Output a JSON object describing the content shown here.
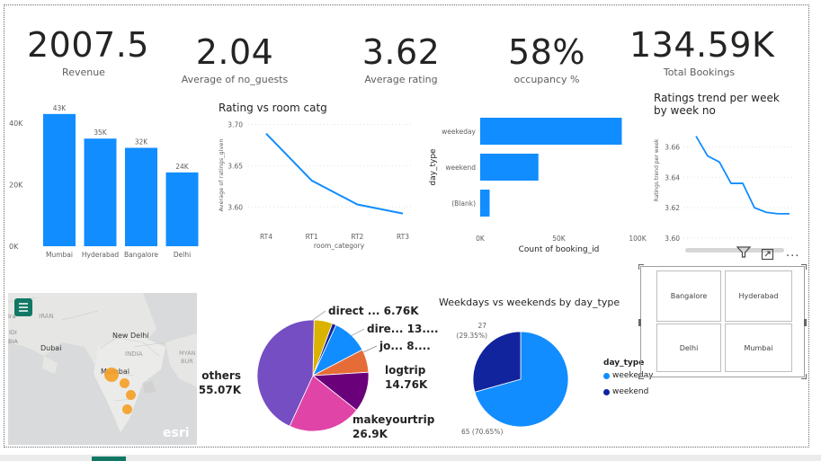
{
  "kpis": {
    "revenue": {
      "value": "2007.5M",
      "label": "Revenue"
    },
    "guests": {
      "value": "2.04",
      "label": "Average of no_guests"
    },
    "rating": {
      "value": "3.62",
      "label": "Average rating"
    },
    "occupancy": {
      "value": "58%",
      "label": "occupancy %"
    },
    "bookings": {
      "value": "134.59K",
      "label": "Total Bookings"
    }
  },
  "chart_data": [
    {
      "type": "bar",
      "title": "",
      "categories": [
        "Mumbai",
        "Hyderabad",
        "Bangalore",
        "Delhi"
      ],
      "values": [
        43,
        35,
        32,
        24
      ],
      "value_labels": [
        "43K",
        "35K",
        "32K",
        "24K"
      ],
      "ylim": [
        0,
        45
      ],
      "yticks": [
        0,
        20,
        40
      ],
      "ytick_labels": [
        "0K",
        "20K",
        "40K"
      ],
      "color": "#118DFF"
    },
    {
      "type": "line",
      "title": "Rating vs room catg",
      "x": [
        "RT4",
        "RT1",
        "RT2",
        "RT3"
      ],
      "y": [
        3.689,
        3.632,
        3.603,
        3.592
      ],
      "xlabel": "room_category",
      "ylabel": "Average of ratings_given",
      "ylim": [
        3.585,
        3.705
      ],
      "yticks": [
        3.6,
        3.65,
        3.7
      ],
      "ytick_labels": [
        "3.60",
        "3.65",
        "3.70"
      ],
      "color": "#118DFF"
    },
    {
      "type": "bar",
      "orientation": "horizontal",
      "title": "",
      "categories": [
        "weekeday",
        "weekend",
        "(Blank)"
      ],
      "values": [
        90000,
        37000,
        6000
      ],
      "xlabel": "Count of booking_id",
      "ylabel": "day_type",
      "xlim": [
        0,
        100000
      ],
      "xticks": [
        0,
        50000,
        100000
      ],
      "xtick_labels": [
        "0K",
        "50K",
        "100K"
      ],
      "color": "#118DFF"
    },
    {
      "type": "line",
      "title": "Ratings trend per week by week no",
      "x": [
        1,
        2,
        3,
        4,
        5,
        6,
        7,
        8,
        9
      ],
      "y": [
        3.667,
        3.654,
        3.65,
        3.636,
        3.636,
        3.62,
        3.617,
        3.616,
        3.616
      ],
      "ylabel": "Ratings trend per week",
      "ylim": [
        3.6,
        3.675
      ],
      "yticks": [
        3.6,
        3.62,
        3.64,
        3.66
      ],
      "ytick_labels": [
        "3.60",
        "3.62",
        "3.64",
        "3.66"
      ],
      "color": "#118DFF"
    },
    {
      "type": "pie",
      "title": "",
      "slices": [
        {
          "label": "others",
          "value_label": "55.07K",
          "value": 55.07,
          "color": "#744EC2"
        },
        {
          "label": "direct ...",
          "value_label": "6.76K",
          "value": 6.76,
          "color": "#D9B300"
        },
        {
          "label": "dire...",
          "value_label": "13....",
          "value": 13.3,
          "color": "#118DFF"
        },
        {
          "label": "jo...",
          "value_label": "8....",
          "value": 8.5,
          "color": "#E66C37"
        },
        {
          "label": "logtrip",
          "value_label": "14.76K",
          "value": 14.76,
          "color": "#6B007B"
        },
        {
          "label": "makeyourtrip",
          "value_label": "26.9K",
          "value": 26.9,
          "color": "#E044A7"
        }
      ],
      "extra_sliver_color": "#12239E"
    },
    {
      "type": "pie",
      "title": "Weekdays vs weekends by day_type",
      "slices": [
        {
          "label": "weekeday",
          "value": 65,
          "percent": 70.65,
          "color": "#118DFF",
          "data_label": "65 (70.65%)"
        },
        {
          "label": "weekend",
          "value": 27,
          "percent": 29.35,
          "color": "#12239E",
          "data_label_line1": "27",
          "data_label_line2": "(29.35%)"
        }
      ],
      "legend_title": "day_type",
      "legend_placement": "right"
    }
  ],
  "map": {
    "labels": [
      "IRAN",
      "New Delhi",
      "Dubai",
      "INDIA",
      "Mumbai",
      "MYAN",
      "BUR"
    ],
    "edge_labels": [
      "Ira",
      "IDI",
      "BIA"
    ],
    "brand": "esri",
    "layers_button_icon": "layers-icon",
    "bubble_color": "#F5A023"
  },
  "slicer": {
    "cells": [
      "Bangalore",
      "Hyderabad",
      "Delhi",
      "Mumbai"
    ]
  },
  "visual_header": {
    "icons": [
      "filter-icon",
      "focus-mode-icon",
      "more-options-icon"
    ],
    "more_label": "..."
  }
}
